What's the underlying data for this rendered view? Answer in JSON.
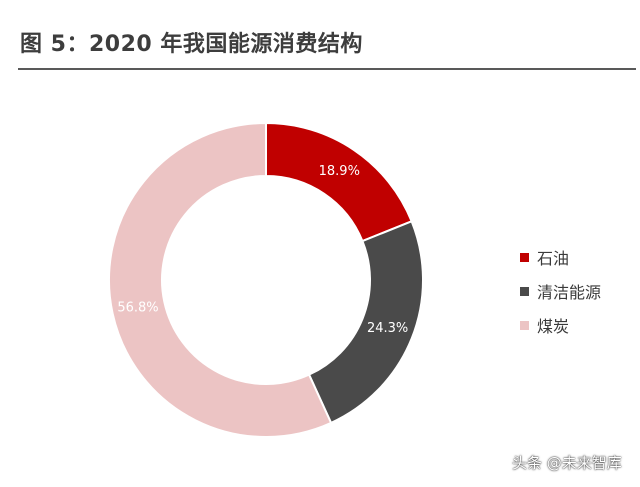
{
  "title": "图 5：2020 年我国能源消费结构",
  "watermark": "头条 @未来智库",
  "chart_data": {
    "type": "pie",
    "donut": true,
    "title": "图 5：2020 年我国能源消费结构",
    "legend_position": "right",
    "series": [
      {
        "name": "石油",
        "value": 18.9,
        "label": "18.9%",
        "color": "#c00000"
      },
      {
        "name": "清洁能源",
        "value": 24.3,
        "label": "24.3%",
        "color": "#4a4a4a"
      },
      {
        "name": "煤炭",
        "value": 56.8,
        "label": "56.8%",
        "color": "#ecc4c4"
      }
    ],
    "label_colors": [
      "#ffffff",
      "#ffffff",
      "#ffffff"
    ]
  }
}
